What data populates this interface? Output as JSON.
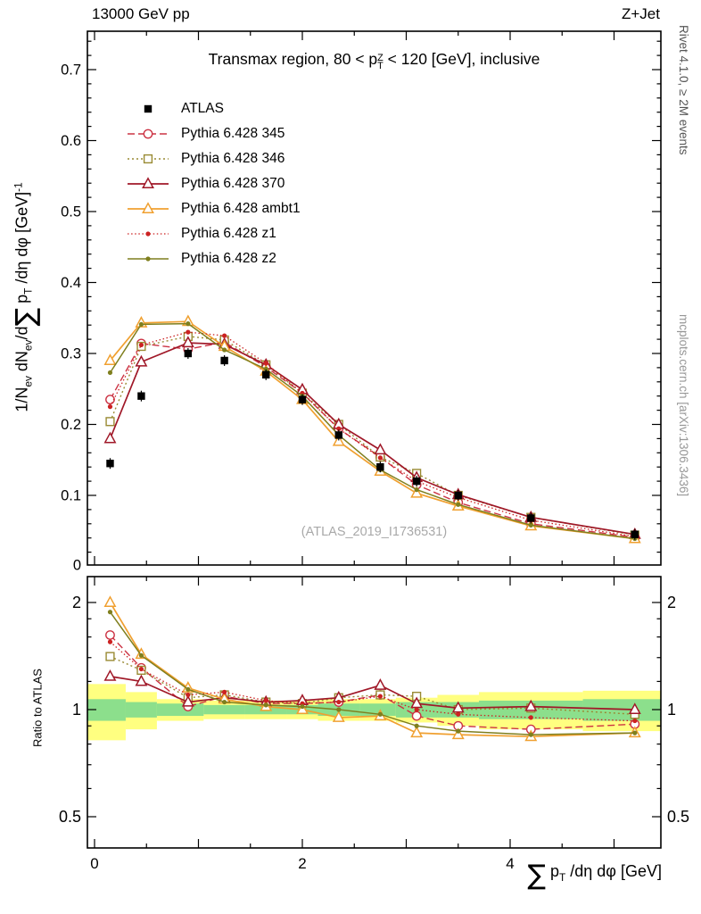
{
  "header": {
    "left": "13000 GeV pp",
    "right": "Z+Jet"
  },
  "side_notes": {
    "top_right": "Rivet 4.1.0, ≥ 2M events",
    "bottom_right": "mcplots.cern.ch [arXiv:1306.3436]"
  },
  "watermark": "(ATLAS_2019_I1736531)",
  "title_segments": [
    {
      "t": "Transmax region, 80 < p"
    },
    {
      "stack": {
        "sup": "Z",
        "sub": "T"
      }
    },
    {
      "t": " < 120 [GeV], inclusive"
    }
  ],
  "axes": {
    "y_label_segments": [
      {
        "t": "1/N"
      },
      {
        "sub": "ev"
      },
      {
        "t": " dN"
      },
      {
        "sub": "ev"
      },
      {
        "t": "/d"
      },
      {
        "big": "∑"
      },
      {
        "t": " p"
      },
      {
        "sub": "T"
      },
      {
        "t": " /dη dφ  [GeV]"
      },
      {
        "sup": "-1"
      }
    ],
    "x_label_segments": [
      {
        "big": "∑"
      },
      {
        "t": " p"
      },
      {
        "sub": "T"
      },
      {
        "t": " /dη dφ [GeV]"
      }
    ],
    "ratio_y_label": "Ratio to ATLAS"
  },
  "chart_data": {
    "type": "line",
    "title": "Transmax region, 80 < pT(Z) < 120 [GeV], inclusive",
    "xlabel": "sum pT /deta dphi [GeV]",
    "ylabel": "1/N_ev dN_ev/d sum pT /deta dphi [GeV]^-1",
    "ratio_label": "Ratio to ATLAS",
    "legend_position": "top-left",
    "grid": false,
    "xlim": [
      -0.07,
      5.45
    ],
    "ylim": [
      0,
      0.754
    ],
    "ratio_ylim": [
      0.41,
      2.36
    ],
    "ratio_scale": "log",
    "x_major_ticks": [
      0,
      2,
      4
    ],
    "y_major_ticks": [
      0,
      0.1,
      0.2,
      0.3,
      0.4,
      0.5,
      0.6,
      0.7
    ],
    "ratio_major_ticks": [
      0.5,
      1,
      2
    ],
    "band_colors": {
      "yellow": "#ffff80",
      "green": "#8cdf8c"
    },
    "x": [
      0.15,
      0.45,
      0.9,
      1.25,
      1.65,
      2.0,
      2.35,
      2.75,
      3.1,
      3.5,
      4.2,
      5.2
    ],
    "series": [
      {
        "key": "atlas",
        "name": "ATLAS",
        "color": "#000000",
        "marker": "square-filled",
        "line": "none",
        "lw": 0,
        "values": [
          0.145,
          0.24,
          0.3,
          0.29,
          0.27,
          0.235,
          0.185,
          0.14,
          0.12,
          0.1,
          0.068,
          0.045
        ],
        "ratio": [
          1,
          1,
          1,
          1,
          1,
          1,
          1,
          1,
          1,
          1,
          1,
          1
        ]
      },
      {
        "key": "py345",
        "name": "Pythia 6.428 345",
        "color": "#cc3344",
        "marker": "circle-open",
        "line": "dashed",
        "lw": 1.4,
        "values": [
          0.235,
          0.314,
          0.306,
          0.316,
          0.281,
          0.244,
          0.194,
          0.154,
          0.115,
          0.09,
          0.06,
          0.041
        ],
        "ratio": [
          1.62,
          1.31,
          1.02,
          1.09,
          1.04,
          1.04,
          1.05,
          1.1,
          0.96,
          0.9,
          0.88,
          0.91
        ]
      },
      {
        "key": "py346",
        "name": "Pythia 6.428 346",
        "color": "#998a33",
        "marker": "square-open",
        "line": "dotted",
        "lw": 1.4,
        "values": [
          0.204,
          0.31,
          0.324,
          0.319,
          0.284,
          0.244,
          0.2,
          0.154,
          0.131,
          0.1,
          0.069,
          0.044
        ],
        "ratio": [
          1.41,
          1.29,
          1.08,
          1.1,
          1.05,
          1.04,
          1.08,
          1.1,
          1.09,
          1.0,
          1.01,
          0.97
        ]
      },
      {
        "key": "py370",
        "name": "Pythia 6.428 370",
        "color": "#a01828",
        "marker": "triangle-open",
        "line": "solid",
        "lw": 1.7,
        "values": [
          0.18,
          0.288,
          0.315,
          0.313,
          0.284,
          0.249,
          0.2,
          0.164,
          0.125,
          0.101,
          0.069,
          0.045
        ],
        "ratio": [
          1.24,
          1.2,
          1.05,
          1.08,
          1.05,
          1.06,
          1.08,
          1.17,
          1.04,
          1.01,
          1.02,
          1.0
        ]
      },
      {
        "key": "pyambt1",
        "name": "Pythia 6.428 ambt1",
        "color": "#f0a030",
        "marker": "triangle-open",
        "line": "solid",
        "lw": 1.7,
        "values": [
          0.29,
          0.343,
          0.345,
          0.31,
          0.275,
          0.235,
          0.176,
          0.134,
          0.103,
          0.085,
          0.057,
          0.039
        ],
        "ratio": [
          2.0,
          1.43,
          1.15,
          1.07,
          1.02,
          1.0,
          0.95,
          0.96,
          0.86,
          0.85,
          0.84,
          0.86
        ]
      },
      {
        "key": "pyz1",
        "name": "Pythia 6.428 z1",
        "color": "#cc2222",
        "marker": "dot",
        "line": "fine-dotted",
        "lw": 1.3,
        "values": [
          0.225,
          0.312,
          0.33,
          0.325,
          0.286,
          0.244,
          0.194,
          0.153,
          0.12,
          0.097,
          0.065,
          0.042
        ],
        "ratio": [
          1.55,
          1.3,
          1.1,
          1.12,
          1.06,
          1.04,
          1.05,
          1.09,
          1.0,
          0.97,
          0.95,
          0.93
        ]
      },
      {
        "key": "pyz2",
        "name": "Pythia 6.428 z2",
        "color": "#7f7f1e",
        "marker": "dot",
        "line": "solid",
        "lw": 1.5,
        "values": [
          0.273,
          0.341,
          0.342,
          0.305,
          0.278,
          0.24,
          0.185,
          0.136,
          0.108,
          0.087,
          0.058,
          0.039
        ],
        "ratio": [
          1.88,
          1.42,
          1.14,
          1.05,
          1.03,
          1.02,
          1.0,
          0.97,
          0.9,
          0.87,
          0.85,
          0.86
        ]
      }
    ],
    "bands": [
      {
        "x0": -0.07,
        "x1": 0.3,
        "y_lo": 0.82,
        "y_hi": 1.18,
        "g_lo": 0.93,
        "g_hi": 1.07
      },
      {
        "x0": 0.3,
        "x1": 0.6,
        "y_lo": 0.88,
        "y_hi": 1.12,
        "g_lo": 0.95,
        "g_hi": 1.05
      },
      {
        "x0": 0.6,
        "x1": 1.05,
        "y_lo": 0.93,
        "y_hi": 1.07,
        "g_lo": 0.96,
        "g_hi": 1.04
      },
      {
        "x0": 1.05,
        "x1": 1.45,
        "y_lo": 0.94,
        "y_hi": 1.06,
        "g_lo": 0.97,
        "g_hi": 1.03
      },
      {
        "x0": 1.45,
        "x1": 1.85,
        "y_lo": 0.94,
        "y_hi": 1.06,
        "g_lo": 0.97,
        "g_hi": 1.03
      },
      {
        "x0": 1.85,
        "x1": 2.15,
        "y_lo": 0.94,
        "y_hi": 1.06,
        "g_lo": 0.97,
        "g_hi": 1.03
      },
      {
        "x0": 2.15,
        "x1": 2.55,
        "y_lo": 0.93,
        "y_hi": 1.07,
        "g_lo": 0.96,
        "g_hi": 1.04
      },
      {
        "x0": 2.55,
        "x1": 2.9,
        "y_lo": 0.93,
        "y_hi": 1.07,
        "g_lo": 0.96,
        "g_hi": 1.04
      },
      {
        "x0": 2.9,
        "x1": 3.3,
        "y_lo": 0.92,
        "y_hi": 1.08,
        "g_lo": 0.95,
        "g_hi": 1.05
      },
      {
        "x0": 3.3,
        "x1": 3.7,
        "y_lo": 0.9,
        "y_hi": 1.1,
        "g_lo": 0.95,
        "g_hi": 1.05
      },
      {
        "x0": 3.7,
        "x1": 4.7,
        "y_lo": 0.88,
        "y_hi": 1.12,
        "g_lo": 0.94,
        "g_hi": 1.06
      },
      {
        "x0": 4.7,
        "x1": 5.45,
        "y_lo": 0.87,
        "y_hi": 1.13,
        "g_lo": 0.93,
        "g_hi": 1.07
      }
    ]
  }
}
